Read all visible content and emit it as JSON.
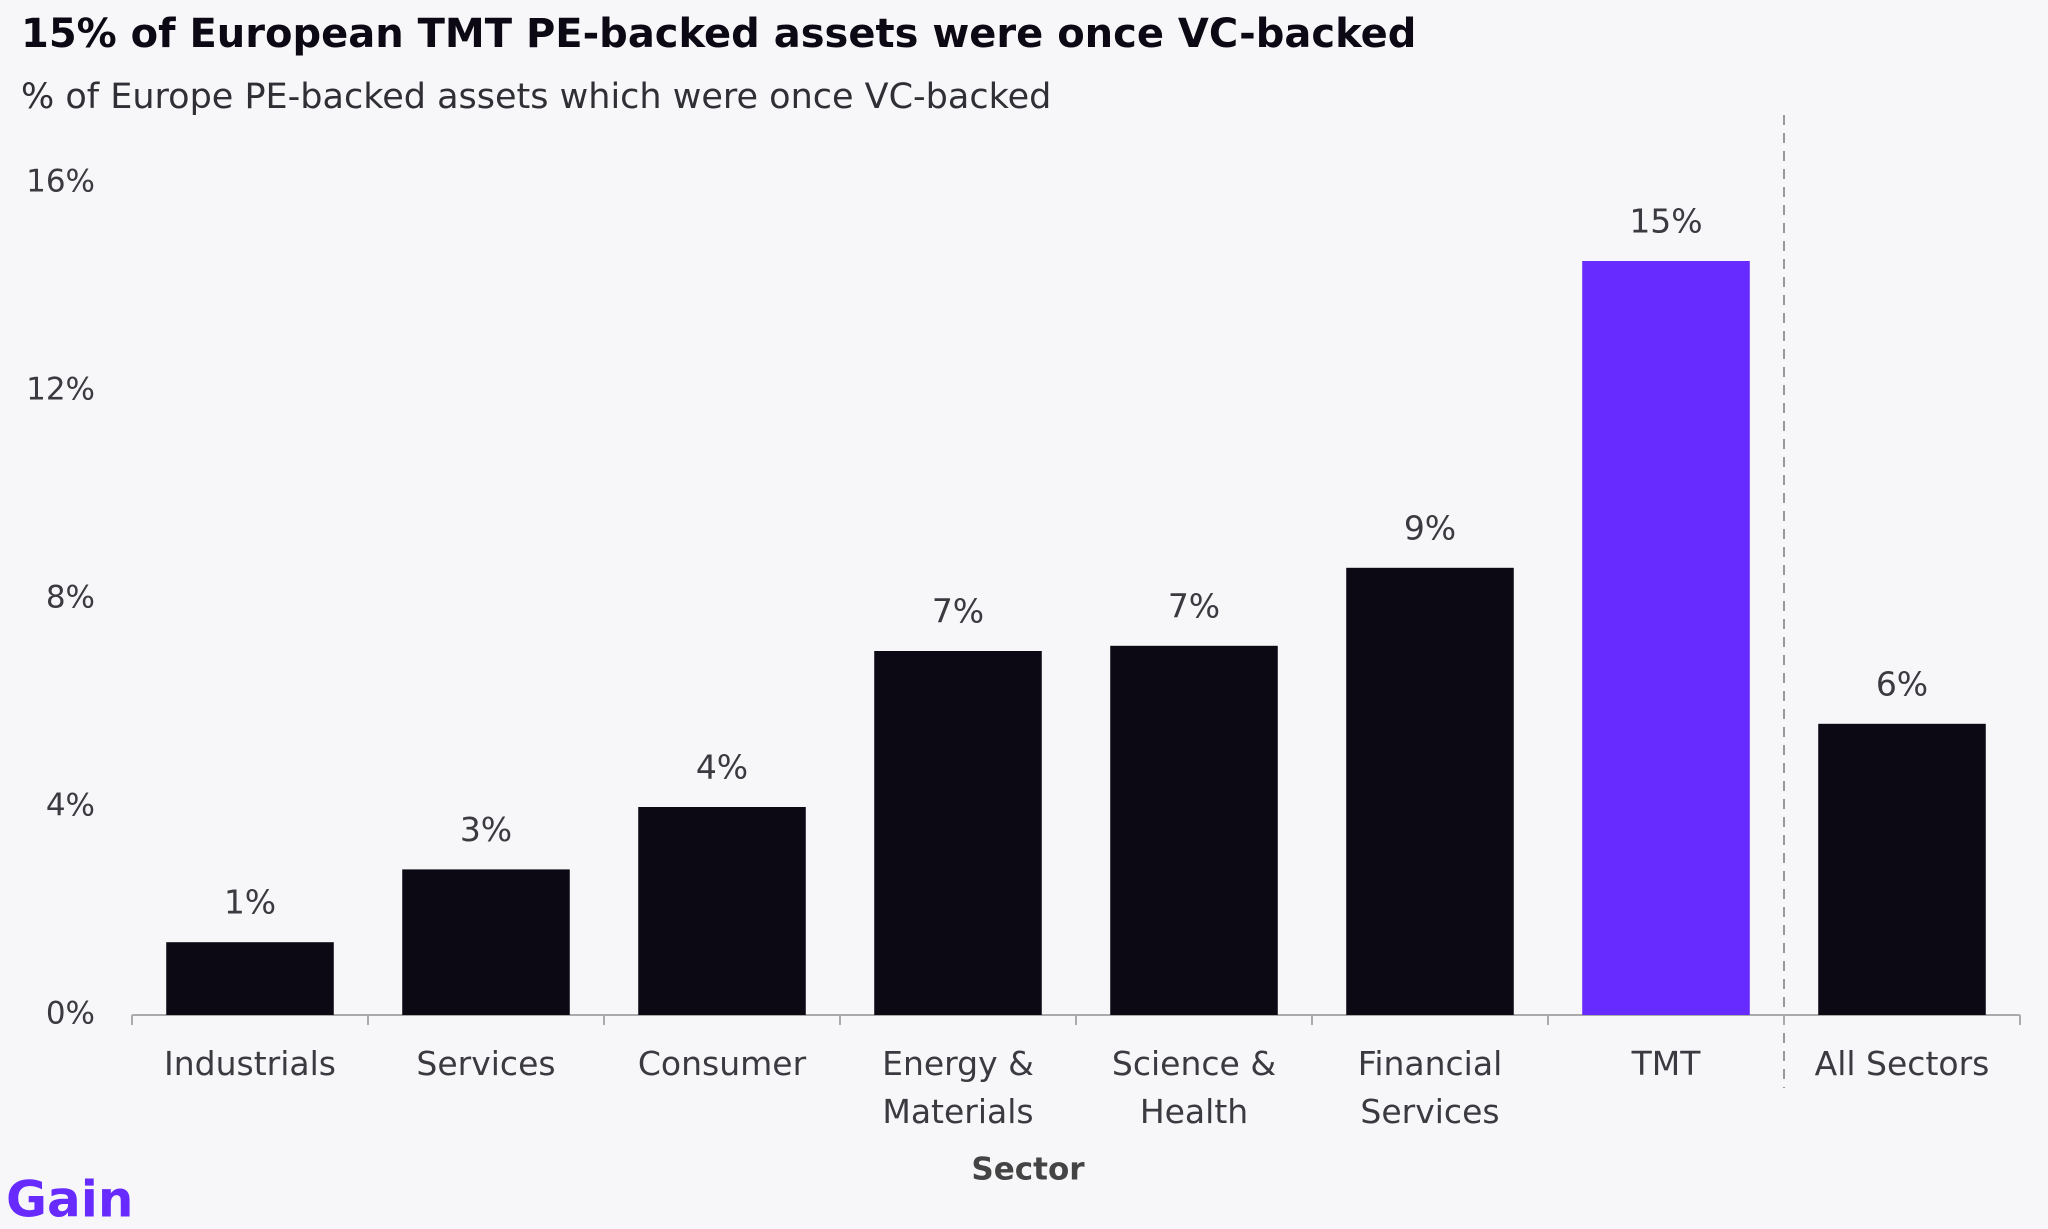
{
  "chart_data": {
    "type": "bar",
    "title": "15% of European TMT PE-backed assets were once VC-backed",
    "subtitle": "% of Europe PE-backed assets which were once VC-backed",
    "x_label": "Sector",
    "brand": "Gain",
    "categories": [
      "Industrials",
      "Services",
      "Consumer",
      "Energy &\nMaterials",
      "Science &\nHealth",
      "Financial\nServices",
      "TMT",
      "All Sectors"
    ],
    "values": [
      1.4,
      2.8,
      4.0,
      7.0,
      7.1,
      8.6,
      14.5,
      5.6
    ],
    "value_labels": [
      "1%",
      "3%",
      "4%",
      "7%",
      "7%",
      "9%",
      "15%",
      "6%"
    ],
    "colors": [
      "#0c0914",
      "#0c0914",
      "#0c0914",
      "#0c0914",
      "#0c0914",
      "#0c0914",
      "#672bff",
      "#0c0914"
    ],
    "ylim": [
      0,
      16
    ],
    "yticks": [
      {
        "value": 0,
        "label": "0%"
      },
      {
        "value": 4,
        "label": "4%"
      },
      {
        "value": 8,
        "label": "8%"
      },
      {
        "value": 12,
        "label": "12%"
      },
      {
        "value": 16,
        "label": "16%"
      }
    ],
    "grid": false
  }
}
